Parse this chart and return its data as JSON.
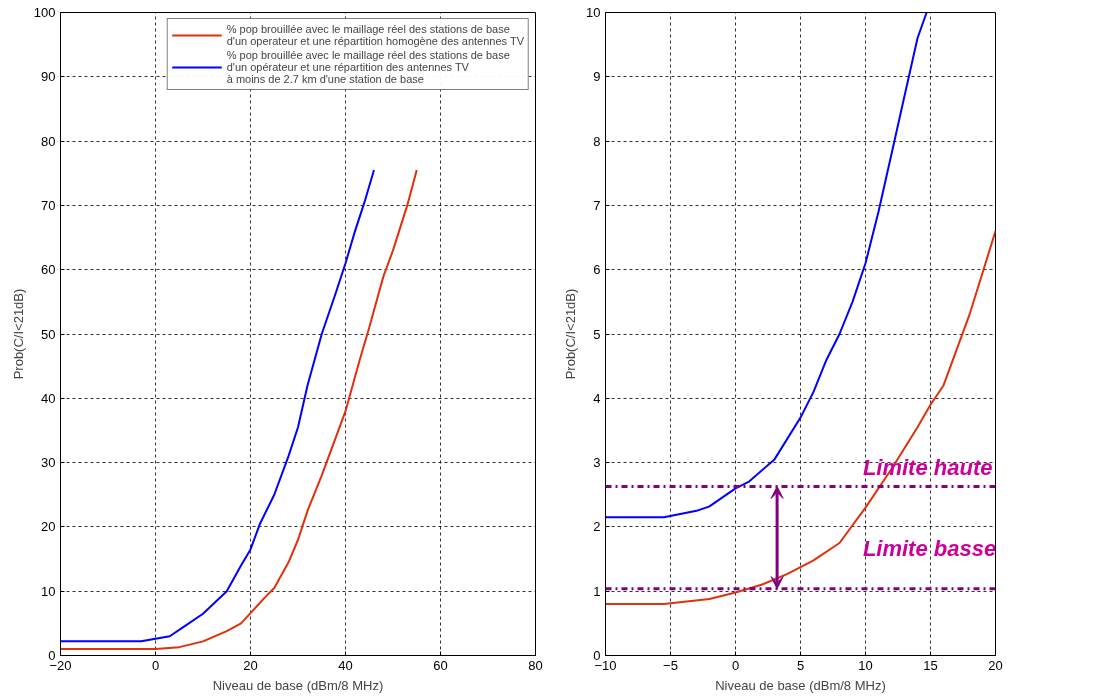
{
  "chart_data": [
    {
      "type": "line",
      "xlabel": "Niveau de base (dBm/8 MHz)",
      "ylabel": "Prob(C/I<21dB)",
      "xlim": [
        -20,
        80
      ],
      "xticks": [
        -20,
        0,
        20,
        40,
        60,
        80
      ],
      "ylim": [
        0,
        100
      ],
      "yticks": [
        0,
        10,
        20,
        30,
        40,
        50,
        60,
        70,
        80,
        90,
        100
      ],
      "grid": true,
      "legend": "top right",
      "line_style": "solid",
      "series": [
        {
          "name": "% pop brouillée avec le maillage réel des stations de base\nd'un operateur et une répartition homogène des antennes TV",
          "color": "#e0300c",
          "x": [
            -20,
            0,
            5,
            10,
            15,
            18,
            20,
            23,
            25,
            28,
            30,
            32,
            35,
            38,
            40,
            43,
            45,
            48,
            50,
            53,
            55
          ],
          "values": [
            1,
            1,
            1.3,
            2.2,
            3.8,
            5,
            6.6,
            9,
            10.5,
            14.5,
            18,
            22.5,
            28,
            34,
            38,
            46,
            51,
            59,
            63,
            70,
            75.5
          ]
        },
        {
          "name": "% pop brouillée avec le maillage réel des stations de base\nd'un opérateur et une répartition des antennes TV\nà moins de 2.7 km d'une station de base",
          "color": "#0000ff",
          "x": [
            -20,
            -3,
            0,
            3,
            6,
            10,
            15,
            18,
            20,
            22,
            25,
            28,
            30,
            32,
            35,
            38,
            40,
            42,
            44,
            46
          ],
          "values": [
            2.2,
            2.2,
            2.6,
            3,
            4.5,
            6.5,
            10,
            14,
            16.5,
            20.5,
            25,
            31,
            35.5,
            42,
            50,
            56.5,
            61,
            66,
            70.5,
            75.5
          ]
        }
      ]
    },
    {
      "type": "line",
      "xlabel": "Niveau de base (dBm/8 MHz)",
      "ylabel": "Prob(C/I<21dB)",
      "xlim": [
        -10,
        20
      ],
      "xticks": [
        -10,
        -5,
        0,
        5,
        10,
        15,
        20
      ],
      "ylim": [
        0,
        10
      ],
      "yticks": [
        0,
        1,
        2,
        3,
        4,
        5,
        6,
        7,
        8,
        9,
        10
      ],
      "grid": true,
      "line_style": "solid",
      "series": [
        {
          "color": "#e0300c",
          "x": [
            -10,
            -5.5,
            -2,
            0,
            2,
            4,
            6,
            8,
            10,
            12,
            14,
            15,
            16,
            18,
            20
          ],
          "values": [
            0.8,
            0.8,
            0.88,
            0.98,
            1.1,
            1.27,
            1.48,
            1.75,
            2.3,
            2.9,
            3.55,
            3.9,
            4.2,
            5.3,
            6.6
          ]
        },
        {
          "color": "#0000ff",
          "x": [
            -10,
            -5.5,
            -3,
            -2,
            0,
            1,
            3,
            5,
            6,
            7,
            8,
            9,
            10,
            11,
            12,
            13,
            14,
            14.7
          ],
          "values": [
            2.15,
            2.15,
            2.25,
            2.32,
            2.6,
            2.7,
            3.05,
            3.7,
            4.1,
            4.6,
            5,
            5.5,
            6.1,
            6.9,
            7.8,
            8.7,
            9.6,
            10
          ]
        }
      ],
      "ref_lines": [
        {
          "axis": "y",
          "value": 2.63,
          "label": "Limite haute",
          "color": "#800080",
          "line_style": "dashdot"
        },
        {
          "axis": "y",
          "value": 1.04,
          "label": "Limite basse",
          "color": "#800080",
          "line_style": "dashdot"
        }
      ]
    }
  ]
}
